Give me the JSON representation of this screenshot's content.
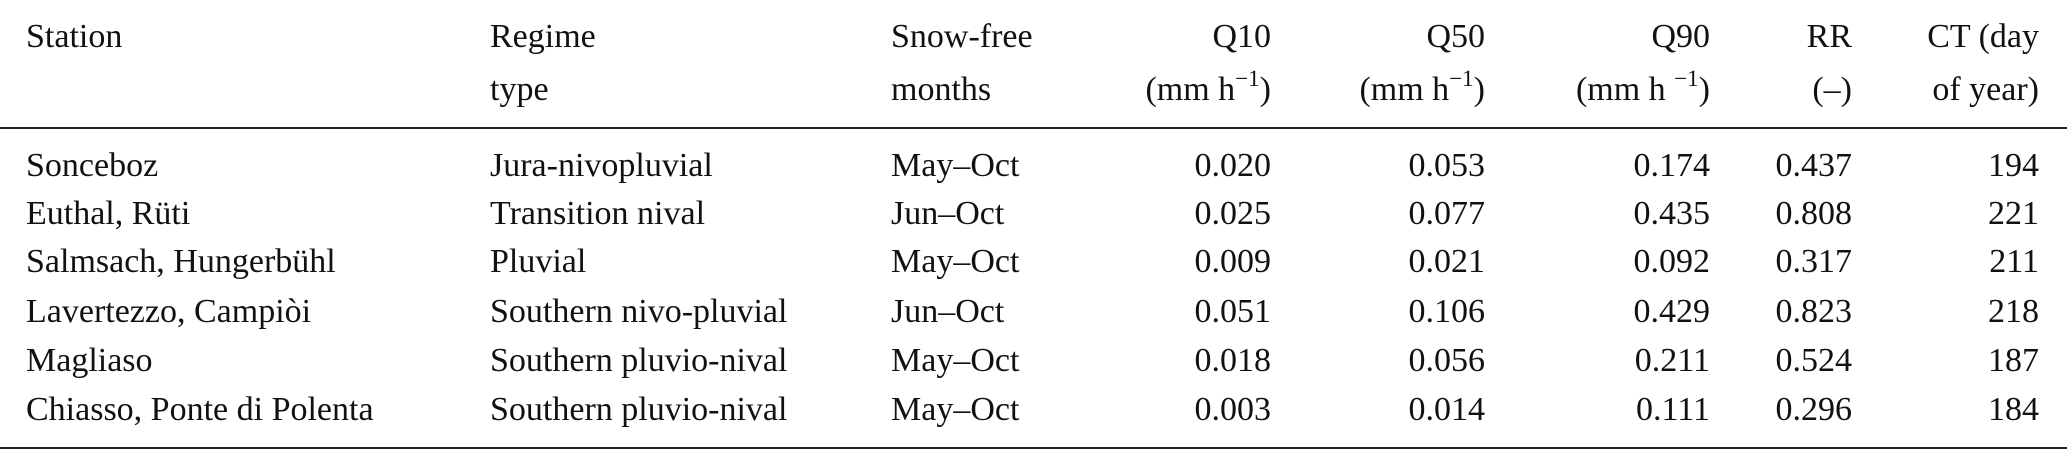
{
  "table": {
    "header": [
      {
        "lines": [
          "Station"
        ]
      },
      {
        "lines": [
          "Regime",
          "type"
        ]
      },
      {
        "lines": [
          "Snow-free",
          "months"
        ]
      },
      {
        "lines": [
          "Q10",
          {
            "text": "(mm h",
            "sup": "−1",
            "tail": ")"
          }
        ]
      },
      {
        "lines": [
          "Q50",
          {
            "text": "(mm h",
            "sup": "−1",
            "tail": ")"
          }
        ]
      },
      {
        "lines": [
          "Q90",
          {
            "text": "(mm h ",
            "sup": "−1",
            "tail": ")"
          }
        ]
      },
      {
        "lines": [
          "RR",
          "(–)"
        ]
      },
      {
        "lines": [
          "CT (day",
          "of year)"
        ]
      }
    ],
    "rows": [
      [
        "Sonceboz",
        "Jura-nivopluvial",
        "May–Oct",
        "0.020",
        "0.053",
        "0.174",
        "0.437",
        "194"
      ],
      [
        "Euthal, Rüti",
        "Transition nival",
        "Jun–Oct",
        "0.025",
        "0.077",
        "0.435",
        "0.808",
        "221"
      ],
      [
        "Salmsach, Hungerbühl",
        "Pluvial",
        "May–Oct",
        "0.009",
        "0.021",
        "0.092",
        "0.317",
        "211"
      ],
      [
        "Lavertezzo, Campiòi",
        "Southern nivo-pluvial",
        "Jun–Oct",
        "0.051",
        "0.106",
        "0.429",
        "0.823",
        "218"
      ],
      [
        "Magliaso",
        "Southern pluvio-nival",
        "May–Oct",
        "0.018",
        "0.056",
        "0.211",
        "0.524",
        "187"
      ],
      [
        "Chiasso, Ponte di Polenta",
        "Southern pluvio-nival",
        "May–Oct",
        "0.003",
        "0.014",
        "0.111",
        "0.296",
        "184"
      ]
    ]
  }
}
